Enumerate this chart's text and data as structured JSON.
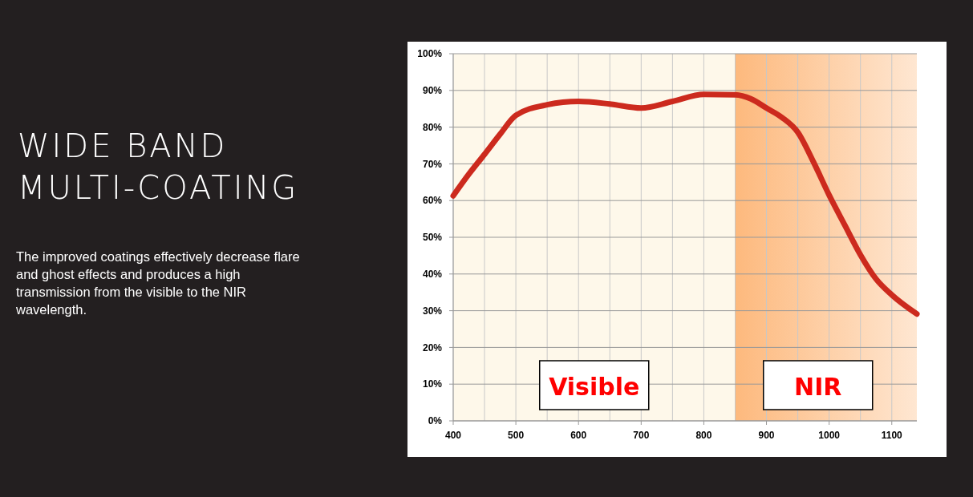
{
  "chart_data": {
    "type": "line",
    "title": "WIDE BAND MULTI-COATING",
    "subtitle": "The improved coatings effectively decrease flare and ghost effects and produces a high transmission from the visible to the NIR wavelength.",
    "x": [
      400,
      425,
      450,
      475,
      500,
      550,
      600,
      650,
      700,
      750,
      800,
      850,
      875,
      900,
      925,
      950,
      975,
      1000,
      1025,
      1050,
      1075,
      1100,
      1140
    ],
    "series": [
      {
        "color": "#cc2a1e",
        "values": [
          61.3,
          67.2,
          72.6,
          78.1,
          83.2,
          86.1,
          87.0,
          86.3,
          85.2,
          87.0,
          88.9,
          88.8,
          87.7,
          85.2,
          82.6,
          78.6,
          70.5,
          61.5,
          53.3,
          45.2,
          38.6,
          34.3,
          29.1
        ]
      }
    ],
    "xlim": [
      400,
      1140
    ],
    "xticks": [
      400,
      {
        "value": 450,
        "label": null
      },
      500,
      {
        "value": 550,
        "label": null
      },
      600,
      {
        "value": 650,
        "label": null
      },
      700,
      {
        "value": 750,
        "label": null
      },
      800,
      {
        "value": 850,
        "label": null
      },
      900,
      {
        "value": 950,
        "label": null
      },
      1000,
      {
        "value": 1050,
        "label": null
      },
      1100
    ],
    "ylim": [
      0,
      100
    ],
    "yticks": [
      {
        "value": 0,
        "label": "0%"
      },
      {
        "value": 10,
        "label": "10%"
      },
      {
        "value": 20,
        "label": "20%"
      },
      {
        "value": 30,
        "label": "30%"
      },
      {
        "value": 40,
        "label": "40%"
      },
      {
        "value": 50,
        "label": "50%"
      },
      {
        "value": 60,
        "label": "60%"
      },
      {
        "value": 70,
        "label": "70%"
      },
      {
        "value": 80,
        "label": "80%"
      },
      {
        "value": 90,
        "label": "90%"
      },
      {
        "value": 100,
        "label": "100%"
      }
    ],
    "grid": true,
    "line_style": "solid",
    "bands": [
      {
        "axis": "x",
        "from": 400,
        "to": 850,
        "label": "Visible",
        "color": "#fef8ea"
      },
      {
        "axis": "x",
        "from": 850,
        "to": 1140,
        "label": "NIR",
        "color": "#fdb97d"
      }
    ]
  }
}
